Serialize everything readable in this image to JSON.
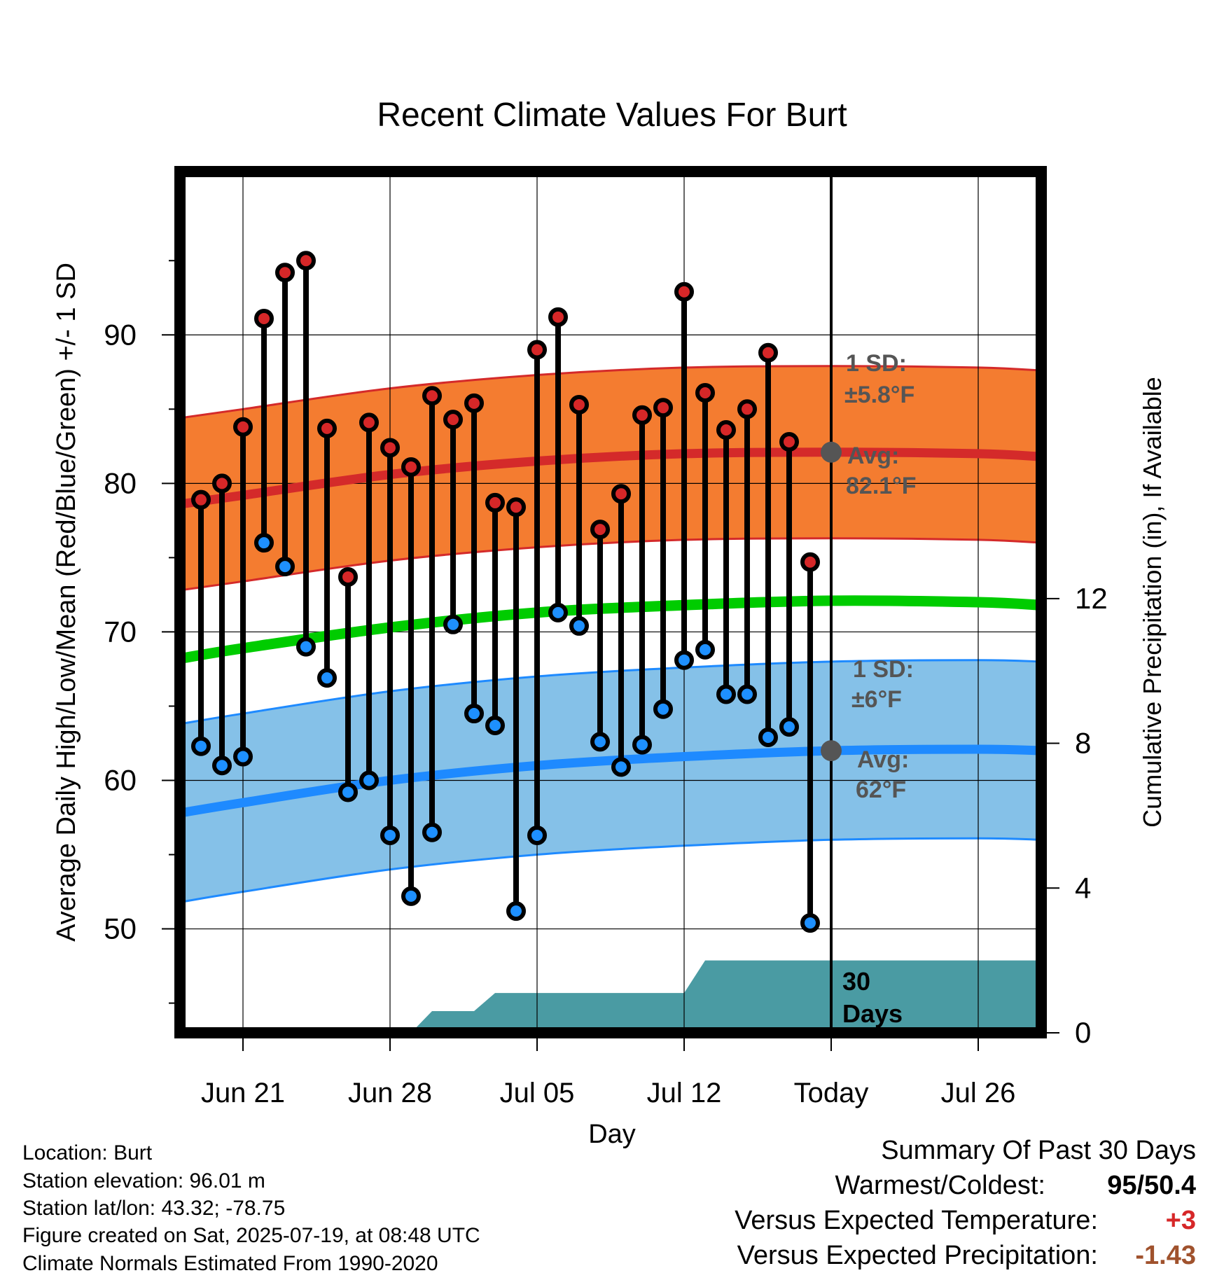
{
  "chart_data": {
    "type": "line",
    "title": "Recent Climate Values For Burt",
    "xlabel": "Day",
    "ylabel": "Average Daily High/Low/Mean (Red/Blue/Green) +/- 1 SD",
    "y2label": "Cumulative Precipitation (in), If Available",
    "x_ticks": [
      "Jun 21",
      "Jun 28",
      "Jul 05",
      "Jul 12",
      "Today",
      "Jul 26"
    ],
    "x_range": [
      "Jun 18",
      "Jul 29"
    ],
    "ylim": [
      43,
      101
    ],
    "y_ticks": [
      50,
      60,
      70,
      80,
      90
    ],
    "y2lim": [
      0,
      23.8
    ],
    "y2_ticks": [
      0,
      4,
      8,
      12
    ],
    "grid": true,
    "dates": [
      "Jun 19",
      "Jun 20",
      "Jun 21",
      "Jun 22",
      "Jun 23",
      "Jun 24",
      "Jun 25",
      "Jun 26",
      "Jun 27",
      "Jun 28",
      "Jun 29",
      "Jun 30",
      "Jul 01",
      "Jul 02",
      "Jul 03",
      "Jul 04",
      "Jul 05",
      "Jul 06",
      "Jul 07",
      "Jul 08",
      "Jul 09",
      "Jul 10",
      "Jul 11",
      "Jul 12",
      "Jul 13",
      "Jul 14",
      "Jul 15",
      "Jul 16",
      "Jul 17",
      "Jul 18"
    ],
    "series": [
      {
        "name": "High",
        "color": "#d62728",
        "values": [
          78.9,
          80.0,
          83.8,
          91.1,
          94.2,
          95.0,
          83.7,
          73.7,
          84.1,
          82.4,
          81.1,
          85.9,
          84.3,
          85.4,
          78.7,
          78.4,
          89.0,
          91.2,
          85.3,
          76.9,
          79.3,
          84.6,
          85.1,
          92.9,
          86.1,
          83.6,
          85.0,
          88.8,
          82.8,
          74.7
        ]
      },
      {
        "name": "Low",
        "color": "#1e90ff",
        "values": [
          62.3,
          61.0,
          61.6,
          76.0,
          74.4,
          69.0,
          66.9,
          59.2,
          60.0,
          56.3,
          52.2,
          56.5,
          70.5,
          64.5,
          63.7,
          51.2,
          56.3,
          71.3,
          70.4,
          62.6,
          60.9,
          62.4,
          64.8,
          68.1,
          68.8,
          65.8,
          65.8,
          62.9,
          63.6,
          50.4
        ]
      }
    ],
    "normals": {
      "dates": [
        "Jun 18",
        "Jun 21",
        "Jun 28",
        "Jul 05",
        "Jul 12",
        "Jul 19",
        "Jul 26",
        "Jul 29"
      ],
      "high_avg": [
        78.6,
        79.2,
        80.6,
        81.5,
        82.0,
        82.1,
        82.0,
        81.8
      ],
      "high_sd": 5.8,
      "low_avg": [
        57.8,
        58.5,
        60.0,
        61.0,
        61.6,
        62.0,
        62.1,
        62.0
      ],
      "low_sd": 6,
      "mean_avg": [
        68.2,
        68.9,
        70.3,
        71.3,
        71.8,
        72.1,
        72.0,
        71.8
      ]
    },
    "precip_cumulative": {
      "dates": [
        "Jun 18",
        "Jun 29",
        "Jun 30",
        "Jul 02",
        "Jul 03",
        "Jul 11",
        "Jul 12",
        "Jul 13",
        "Jul 19",
        "Jul 29"
      ],
      "values": [
        0,
        0,
        0.6,
        0.6,
        1.1,
        1.1,
        1.1,
        2.0,
        2.0,
        2.0
      ]
    },
    "annotations": {
      "high_sd_title": "1 SD:",
      "high_sd_value": "±5.8°F",
      "high_avg_title": "Avg:",
      "high_avg_value": "82.1°F",
      "low_sd_title": "1 SD:",
      "low_sd_value": "±6°F",
      "low_avg_title": "Avg:",
      "low_avg_value": "62°F",
      "days_line1": "30",
      "days_line2": "Days"
    },
    "colors": {
      "high_band": "#f47c30",
      "high_line": "#d42a2a",
      "low_band": "#85c1e8",
      "low_line": "#1e8aff",
      "mean_line": "#00cc00",
      "precip": "#4a9ba3"
    }
  },
  "info": {
    "location": "Location: Burt",
    "elevation": "Station elevation: 96.01 m",
    "latlon": "Station lat/lon: 43.32; -78.75",
    "created": "Figure created on Sat, 2025-07-19, at 08:48 UTC",
    "normals": "Climate Normals Estimated From 1990-2020"
  },
  "summary": {
    "title": "Summary Of Past 30 Days",
    "warm_cold_label": "Warmest/Coldest:",
    "warm_cold_value": "95/50.4",
    "temp_label": "Versus Expected Temperature:",
    "temp_value": "+3",
    "temp_color": "#d62728",
    "precip_label": "Versus Expected Precipitation:",
    "precip_value": "-1.43",
    "precip_color": "#a0522d"
  }
}
